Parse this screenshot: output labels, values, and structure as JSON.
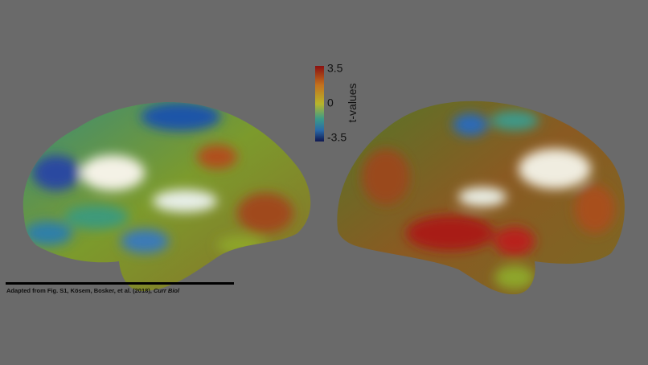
{
  "colorbar": {
    "label": "t-values",
    "ticks": [
      3.5,
      0,
      -3.5
    ]
  },
  "caption": {
    "text": "Adapted from Fig. S1, Kösem, Bosker, et al. (2018), ",
    "journal": "Curr Biol"
  }
}
